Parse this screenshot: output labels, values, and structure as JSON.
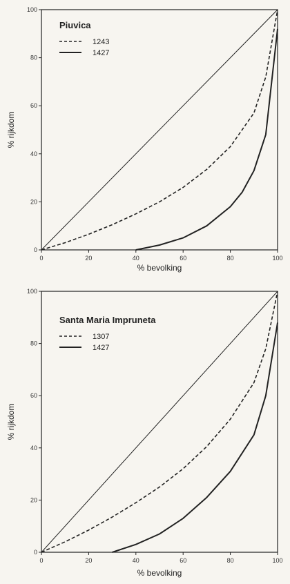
{
  "chart_data": [
    {
      "type": "line",
      "title": "Piuvica",
      "xlabel": "% bevolking",
      "ylabel": "% rijkdom",
      "xlim": [
        0,
        100
      ],
      "ylim": [
        0,
        100
      ],
      "xticks": [
        "0",
        "20",
        "40",
        "60",
        "80",
        "100"
      ],
      "yticks": [
        "0",
        "20",
        "40",
        "60",
        "80",
        "100"
      ],
      "legend_position": "top-left",
      "grid": false,
      "series": [
        {
          "name": "",
          "style": "solid-thin",
          "x": [
            0,
            100
          ],
          "y": [
            0,
            100
          ]
        },
        {
          "name": "1243",
          "style": "dashed",
          "x": [
            0,
            10,
            20,
            30,
            40,
            50,
            60,
            70,
            80,
            90,
            95,
            100
          ],
          "y": [
            0,
            3,
            6.5,
            10.5,
            15,
            20,
            26,
            33.5,
            43,
            57,
            72,
            100
          ]
        },
        {
          "name": "1427",
          "style": "solid",
          "x": [
            40,
            50,
            60,
            70,
            80,
            85,
            90,
            95,
            100
          ],
          "y": [
            0,
            2,
            5,
            10,
            18,
            24,
            33,
            48,
            92
          ]
        }
      ]
    },
    {
      "type": "line",
      "title": "Santa Maria Impruneta",
      "xlabel": "% bevolking",
      "ylabel": "% rijkdom",
      "xlim": [
        0,
        100
      ],
      "ylim": [
        0,
        100
      ],
      "xticks": [
        "0",
        "20",
        "40",
        "60",
        "80",
        "100"
      ],
      "yticks": [
        "0",
        "20",
        "40",
        "60",
        "80",
        "100"
      ],
      "legend_position": "top-left",
      "grid": false,
      "series": [
        {
          "name": "",
          "style": "solid-thin",
          "x": [
            0,
            100
          ],
          "y": [
            0,
            100
          ]
        },
        {
          "name": "1307",
          "style": "dashed",
          "x": [
            0,
            10,
            20,
            30,
            40,
            50,
            60,
            70,
            80,
            90,
            95,
            100
          ],
          "y": [
            0,
            4,
            8.5,
            13.5,
            19,
            25,
            32,
            40.5,
            51,
            65,
            78,
            100
          ]
        },
        {
          "name": "1427",
          "style": "solid",
          "x": [
            30,
            40,
            50,
            60,
            70,
            80,
            90,
            95,
            100
          ],
          "y": [
            0,
            3,
            7,
            13,
            21,
            31,
            45,
            60,
            88
          ]
        }
      ]
    }
  ]
}
